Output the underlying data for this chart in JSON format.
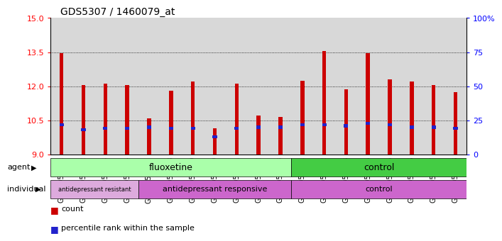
{
  "title": "GDS5307 / 1460079_at",
  "samples": [
    "GSM1059591",
    "GSM1059592",
    "GSM1059593",
    "GSM1059594",
    "GSM1059577",
    "GSM1059578",
    "GSM1059579",
    "GSM1059580",
    "GSM1059581",
    "GSM1059582",
    "GSM1059583",
    "GSM1059561",
    "GSM1059562",
    "GSM1059563",
    "GSM1059564",
    "GSM1059565",
    "GSM1059566",
    "GSM1059567",
    "GSM1059568"
  ],
  "counts": [
    13.45,
    12.05,
    12.1,
    12.05,
    10.6,
    11.8,
    12.2,
    10.15,
    12.1,
    10.7,
    10.65,
    12.25,
    13.55,
    11.85,
    13.45,
    12.3,
    12.2,
    12.05,
    11.75
  ],
  "percentiles": [
    22,
    18,
    19,
    19,
    20,
    19,
    19,
    13,
    19,
    20,
    20,
    22,
    22,
    21,
    23,
    22,
    20,
    20,
    19
  ],
  "ymin": 9,
  "ymax": 15,
  "yticks": [
    9,
    10.5,
    12,
    13.5,
    15
  ],
  "right_yticks": [
    0,
    25,
    50,
    75,
    100
  ],
  "right_ytick_labels": [
    "0",
    "25",
    "50",
    "75",
    "100%"
  ],
  "bar_color": "#cc0000",
  "blue_color": "#2222cc",
  "bar_width": 0.18,
  "grid_lines": [
    10.5,
    12.0,
    13.5
  ],
  "bg_color": "#ffffff",
  "col_bg": "#d8d8d8",
  "tick_label_fontsize": 7,
  "title_fontsize": 10,
  "fluoxetine_color": "#aaffaa",
  "control_agent_color": "#44cc44",
  "resistant_color": "#ddaadd",
  "responsive_color": "#cc66cc",
  "control_indiv_color": "#cc66cc"
}
